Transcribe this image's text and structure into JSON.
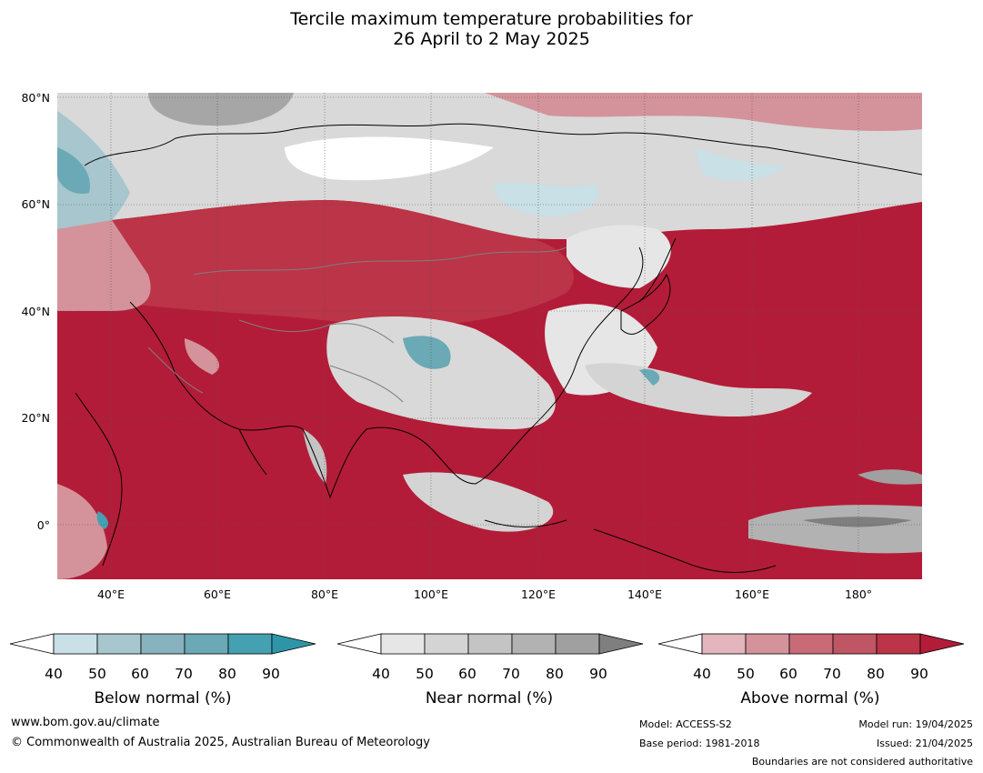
{
  "title_line1": "Tercile maximum temperature probabilities for",
  "title_line2": "26 April to 2 May 2025",
  "lat_labels": [
    "80°N",
    "60°N",
    "40°N",
    "20°N",
    "0°"
  ],
  "lon_labels": [
    "40°E",
    "60°E",
    "80°E",
    "100°E",
    "120°E",
    "140°E",
    "160°E",
    "180°"
  ],
  "colorbars": [
    {
      "title": "Below normal (%)",
      "ticks": [
        "40",
        "50",
        "60",
        "70",
        "80",
        "90"
      ],
      "colors": [
        "#ffffff",
        "#c8e0e6",
        "#a7c6cd",
        "#88b2bd",
        "#6aa9b5",
        "#45a0b1",
        "#2e95a8"
      ]
    },
    {
      "title": "Near normal (%)",
      "ticks": [
        "40",
        "50",
        "60",
        "70",
        "80",
        "90"
      ],
      "colors": [
        "#ffffff",
        "#e6e6e6",
        "#d4d4d4",
        "#c4c4c4",
        "#b2b2b2",
        "#a0a0a0",
        "#7f7f7f"
      ]
    },
    {
      "title": "Above normal (%)",
      "ticks": [
        "40",
        "50",
        "60",
        "70",
        "80",
        "90"
      ],
      "colors": [
        "#ffffff",
        "#e2b6bc",
        "#d4939b",
        "#c96b77",
        "#c05563",
        "#bb3447",
        "#b31c38"
      ]
    }
  ],
  "footer": {
    "website": "www.bom.gov.au/climate",
    "copyright": "© Commonwealth of Australia 2025, Australian Bureau of Meteorology",
    "model": "Model: ACCESS-S2",
    "base_period": "Base period: 1981-2018",
    "model_run": "Model run: 19/04/2025",
    "issued": "Issued: 21/04/2025",
    "disclaimer": "Boundaries are not considered authoritative"
  }
}
